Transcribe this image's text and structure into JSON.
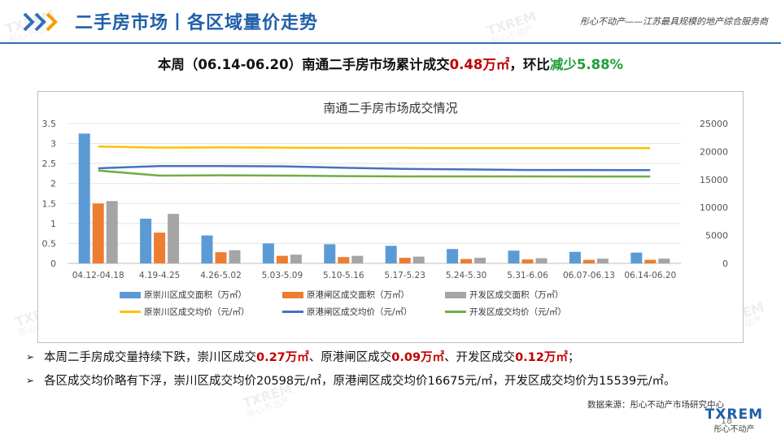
{
  "header": {
    "title": "二手房市场丨各区域量价走势",
    "tagline": "彤心不动产——江苏最具规模的地产综合服务商"
  },
  "headline": {
    "part1": "本周（06.14-06.20）南通二手房市场累计成交",
    "value": "0.48万㎡",
    "part2": "，环比",
    "change": "减少5.88%"
  },
  "chart_data": {
    "type": "bar",
    "title": "南通二手房市场成交情况",
    "categories": [
      "04.12-04.18",
      "4.19-4.25",
      "4.26-5.02",
      "5.03-5.09",
      "5.10-5.16",
      "5.17-5.23",
      "5.24-5.30",
      "5.31-6.06",
      "06.07-06.13",
      "06.14-06.20"
    ],
    "y_left": {
      "range": [
        0,
        3.5
      ],
      "ticks": [
        "0",
        "0.5",
        "1",
        "1.5",
        "2",
        "2.5",
        "3",
        "3.5"
      ]
    },
    "y_right": {
      "range": [
        0,
        25000
      ],
      "ticks": [
        "0",
        "5000",
        "10000",
        "15000",
        "20000",
        "25000"
      ]
    },
    "series": [
      {
        "name": "原崇川区成交面积（万㎡）",
        "kind": "bar",
        "axis": "left",
        "color": "#5b9bd5",
        "values": [
          3.25,
          1.12,
          0.7,
          0.5,
          0.48,
          0.44,
          0.36,
          0.32,
          0.29,
          0.27
        ]
      },
      {
        "name": "原港闸区成交面积（万㎡）",
        "kind": "bar",
        "axis": "left",
        "color": "#ed7d31",
        "values": [
          1.5,
          0.77,
          0.28,
          0.19,
          0.16,
          0.14,
          0.11,
          0.1,
          0.09,
          0.09
        ]
      },
      {
        "name": "开发区成交面积（万㎡）",
        "kind": "bar",
        "axis": "left",
        "color": "#a5a5a5",
        "values": [
          1.56,
          1.24,
          0.33,
          0.22,
          0.19,
          0.17,
          0.14,
          0.13,
          0.12,
          0.12
        ]
      },
      {
        "name": "原崇川区成交均价（元/㎡）",
        "kind": "line",
        "axis": "right",
        "color": "#ffc000",
        "values": [
          20900,
          20700,
          20750,
          20700,
          20650,
          20650,
          20600,
          20600,
          20600,
          20598
        ]
      },
      {
        "name": "原港闸区成交均价（元/㎡）",
        "kind": "line",
        "axis": "right",
        "color": "#4472c4",
        "values": [
          17000,
          17400,
          17400,
          17350,
          17100,
          16900,
          16800,
          16700,
          16700,
          16675
        ]
      },
      {
        "name": "开发区成交均价（元/㎡）",
        "kind": "line",
        "axis": "right",
        "color": "#70ad47",
        "values": [
          16600,
          15700,
          15750,
          15700,
          15600,
          15550,
          15550,
          15550,
          15540,
          15539
        ]
      }
    ]
  },
  "bullets": [
    {
      "segments": [
        "本周二手房成交量持续下跌，崇川区成交",
        "0.27万㎡",
        "、原港闸区成交",
        "0.09万㎡",
        "、开发区成交",
        "0.12万㎡",
        "；"
      ]
    },
    {
      "segments": [
        "各区成交均价略有下浮，崇川区成交均价20598元/㎡，原港闸区成交均价16675元/㎡，开发区成交均价为15539元/㎡。"
      ]
    }
  ],
  "source": "数据来源：彤心不动产市场研究中心",
  "page_number": "18",
  "logo": {
    "brand": "TXREM",
    "name": "彤心不动产"
  },
  "watermark": {
    "brand": "TXREM",
    "name": "彤心不动产"
  }
}
